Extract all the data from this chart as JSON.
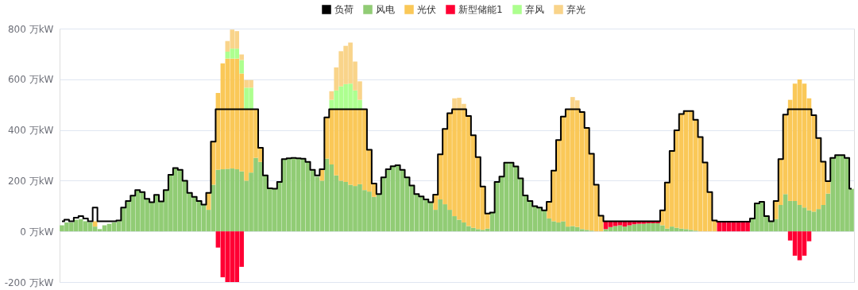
{
  "chart_data": {
    "type": "bar",
    "stacked": true,
    "legend": "top",
    "grid": "y",
    "tick_labels": "y",
    "categories": [
      null,
      null,
      null,
      null,
      null,
      null,
      null,
      null,
      null,
      null,
      null,
      null,
      null,
      null,
      null,
      null,
      null,
      null,
      null,
      null,
      null,
      null,
      null,
      null,
      null,
      null,
      null,
      null,
      null,
      null,
      null,
      null,
      null,
      null,
      null,
      null,
      null,
      null,
      null,
      null,
      null,
      null,
      null,
      null,
      null,
      null,
      null,
      null,
      null,
      null,
      null,
      null,
      null,
      null,
      null,
      null,
      null,
      null,
      null,
      null,
      null,
      null,
      null,
      null,
      null,
      null,
      null,
      null,
      null,
      null,
      null,
      null,
      null,
      null,
      null,
      null,
      null,
      null,
      null,
      null,
      null,
      null,
      null,
      null,
      null,
      null,
      null,
      null,
      null,
      null,
      null,
      null,
      null,
      null,
      null,
      null,
      null,
      null,
      null,
      null,
      null,
      null,
      null,
      null,
      null,
      null,
      null,
      null,
      null,
      null,
      null,
      null,
      null,
      null,
      null,
      null,
      null,
      null,
      null,
      null,
      null,
      null,
      null,
      null,
      null,
      null,
      null,
      null,
      null,
      null,
      null,
      null,
      null,
      null,
      null,
      null,
      null,
      null,
      null,
      null,
      null,
      null,
      null,
      null,
      null,
      null,
      null,
      null,
      null,
      null,
      null,
      null,
      null,
      null,
      null,
      null,
      null,
      null,
      null,
      null,
      null,
      null,
      null,
      null,
      null,
      null,
      null,
      null
    ],
    "ylim": [
      -200,
      800
    ],
    "yticks": [
      {
        "value": -200,
        "label": "-200 万kW"
      },
      {
        "value": 0,
        "label": "0 万kW"
      },
      {
        "value": 200,
        "label": "200 万kW"
      },
      {
        "value": 400,
        "label": "400 万kW"
      },
      {
        "value": 600,
        "label": "600 万kW"
      },
      {
        "value": 800,
        "label": "800 万kW"
      }
    ],
    "series": [
      {
        "name": "负荷",
        "type": "step",
        "color": "#000000",
        "values": [
          40,
          46,
          40,
          54,
          60,
          51,
          40,
          94,
          40,
          40,
          40,
          40,
          43,
          94,
          120,
          141,
          163,
          155,
          128,
          115,
          144,
          118,
          163,
          223,
          250,
          243,
          200,
          152,
          136,
          120,
          106,
          152,
          354,
          482,
          482,
          482,
          482,
          482,
          482,
          482,
          482,
          482,
          330,
          221,
          170,
          168,
          195,
          285,
          288,
          290,
          288,
          287,
          274,
          243,
          221,
          245,
          450,
          482,
          482,
          482,
          482,
          482,
          482,
          482,
          482,
          322,
          189,
          147,
          213,
          245,
          257,
          261,
          243,
          213,
          181,
          147,
          138,
          126,
          115,
          145,
          304,
          404,
          466,
          482,
          482,
          482,
          455,
          379,
          293,
          177,
          70,
          74,
          195,
          216,
          271,
          271,
          256,
          209,
          142,
          120,
          99,
          94,
          83,
          117,
          240,
          360,
          453,
          482,
          482,
          482,
          471,
          408,
          306,
          184,
          62,
          40,
          40,
          40,
          40,
          40,
          40,
          40,
          40,
          40,
          40,
          40,
          40,
          83,
          193,
          317,
          399,
          463,
          475,
          475,
          440,
          372,
          272,
          155,
          43,
          38,
          38,
          38,
          38,
          38,
          38,
          38,
          51,
          110,
          117,
          60,
          40,
          120,
          285,
          461,
          482,
          482,
          482,
          482,
          482,
          458,
          368,
          275,
          198,
          290,
          301,
          301,
          290,
          168
        ]
      },
      {
        "name": "风电",
        "color": "#91cc75",
        "values": [
          24,
          35,
          35,
          46,
          48,
          40,
          35,
          19,
          9,
          24,
          30,
          35,
          40,
          94,
          120,
          141,
          163,
          155,
          128,
          115,
          144,
          118,
          163,
          223,
          250,
          243,
          200,
          152,
          136,
          120,
          106,
          85,
          184,
          243,
          245,
          247,
          248,
          245,
          237,
          200,
          232,
          290,
          274,
          221,
          170,
          168,
          195,
          285,
          288,
          290,
          288,
          287,
          274,
          243,
          216,
          200,
          287,
          264,
          221,
          200,
          195,
          184,
          179,
          186,
          163,
          157,
          136,
          147,
          213,
          245,
          257,
          261,
          243,
          213,
          181,
          147,
          138,
          126,
          115,
          85,
          126,
          107,
          85,
          60,
          46,
          35,
          21,
          14,
          9,
          6,
          11,
          74,
          195,
          216,
          271,
          271,
          256,
          209,
          142,
          120,
          99,
          94,
          83,
          51,
          40,
          35,
          40,
          19,
          21,
          17,
          9,
          6,
          3,
          null,
          null,
          9,
          17,
          21,
          24,
          19,
          24,
          28,
          30,
          30,
          32,
          32,
          32,
          24,
          11,
          19,
          14,
          11,
          9,
          6,
          3,
          null,
          0,
          0,
          0,
          0,
          0,
          0,
          0,
          0,
          0,
          0,
          51,
          110,
          117,
          60,
          40,
          48,
          104,
          147,
          120,
          120,
          104,
          94,
          83,
          78,
          88,
          104,
          149,
          290,
          301,
          301,
          290,
          168
        ]
      },
      {
        "name": "光伏",
        "color": "#fac858",
        "values": [
          null,
          null,
          null,
          null,
          null,
          null,
          null,
          21,
          null,
          null,
          null,
          null,
          null,
          null,
          null,
          null,
          null,
          null,
          null,
          null,
          null,
          null,
          null,
          null,
          null,
          null,
          null,
          null,
          null,
          null,
          null,
          67,
          170,
          303,
          418,
          435,
          434,
          437,
          386,
          282,
          250,
          192,
          56,
          null,
          null,
          null,
          null,
          null,
          null,
          null,
          null,
          null,
          null,
          null,
          null,
          45,
          163,
          218,
          261,
          282,
          287,
          298,
          303,
          296,
          319,
          165,
          53,
          null,
          null,
          null,
          null,
          null,
          null,
          null,
          null,
          null,
          null,
          null,
          null,
          60,
          178,
          297,
          381,
          422,
          436,
          447,
          434,
          365,
          284,
          171,
          59,
          null,
          null,
          null,
          null,
          null,
          null,
          null,
          null,
          null,
          null,
          null,
          null,
          66,
          200,
          325,
          413,
          463,
          461,
          465,
          462,
          402,
          303,
          182,
          60,
          null,
          null,
          null,
          null,
          null,
          null,
          null,
          null,
          null,
          null,
          null,
          null,
          59,
          182,
          298,
          385,
          452,
          466,
          469,
          437,
          370,
          272,
          155,
          43,
          null,
          null,
          null,
          null,
          null,
          null,
          null,
          null,
          null,
          null,
          null,
          null,
          72,
          181,
          314,
          399,
          463,
          495,
          489,
          442,
          380,
          280,
          171,
          49,
          null,
          null,
          null,
          null,
          null
        ]
      },
      {
        "name": "新型储能1",
        "color": "#ff0033",
        "values": [
          null,
          null,
          null,
          null,
          null,
          null,
          null,
          null,
          null,
          null,
          null,
          null,
          null,
          null,
          null,
          null,
          null,
          null,
          null,
          null,
          null,
          null,
          null,
          null,
          null,
          null,
          null,
          null,
          null,
          null,
          null,
          null,
          null,
          -64,
          -181,
          -200,
          -200,
          -200,
          -140,
          null,
          null,
          null,
          null,
          null,
          null,
          null,
          null,
          null,
          null,
          null,
          null,
          null,
          null,
          null,
          null,
          null,
          null,
          null,
          null,
          null,
          null,
          null,
          null,
          null,
          null,
          null,
          null,
          null,
          null,
          null,
          null,
          null,
          null,
          null,
          null,
          null,
          null,
          null,
          null,
          null,
          null,
          null,
          null,
          null,
          null,
          null,
          null,
          null,
          null,
          null,
          null,
          null,
          null,
          null,
          null,
          null,
          null,
          null,
          null,
          null,
          null,
          null,
          null,
          null,
          null,
          null,
          null,
          null,
          null,
          null,
          null,
          null,
          null,
          null,
          null,
          31,
          23,
          19,
          16,
          21,
          16,
          12,
          10,
          10,
          8,
          8,
          8,
          null,
          null,
          null,
          null,
          null,
          null,
          null,
          null,
          null,
          null,
          null,
          null,
          38,
          38,
          38,
          38,
          38,
          38,
          38,
          null,
          null,
          null,
          null,
          null,
          null,
          null,
          null,
          -36,
          -96,
          -114,
          -96,
          -39,
          null,
          null,
          null,
          null,
          null,
          null,
          null,
          null,
          null
        ]
      },
      {
        "name": "弃风",
        "color": "#adff8f",
        "values": [
          null,
          null,
          null,
          null,
          null,
          null,
          null,
          null,
          null,
          null,
          null,
          null,
          null,
          null,
          null,
          null,
          null,
          null,
          null,
          null,
          null,
          null,
          null,
          null,
          null,
          null,
          null,
          null,
          null,
          null,
          null,
          null,
          null,
          null,
          null,
          27,
          39,
          39,
          53,
          85,
          85,
          null,
          null,
          null,
          null,
          null,
          null,
          null,
          null,
          null,
          null,
          null,
          null,
          null,
          null,
          null,
          null,
          37,
          74,
          90,
          99,
          101,
          74,
          37,
          null,
          null,
          null,
          null,
          null,
          null,
          null,
          null,
          null,
          null,
          null,
          null,
          null,
          null,
          null,
          null,
          null,
          null,
          null,
          null,
          null,
          null,
          null,
          null,
          null,
          null,
          null,
          null,
          null,
          null,
          null,
          null,
          null,
          null,
          null,
          null,
          null,
          null,
          null,
          null,
          null,
          null,
          null,
          null,
          null,
          null,
          null,
          null,
          null,
          null,
          null,
          null,
          null,
          null,
          null,
          null,
          null,
          null,
          null,
          null,
          null,
          null,
          null,
          null,
          null,
          null,
          null,
          null,
          null,
          null,
          null,
          null,
          null,
          null,
          null,
          null,
          null,
          null,
          null,
          null,
          null,
          null,
          null,
          null,
          null,
          null,
          null,
          null,
          null,
          null,
          null,
          null,
          null,
          null,
          null,
          null,
          null,
          null,
          null,
          null,
          null,
          null,
          null,
          null
        ]
      },
      {
        "name": "弃光",
        "color": "#f9d48a",
        "values": [
          null,
          null,
          null,
          null,
          null,
          null,
          null,
          null,
          null,
          null,
          null,
          null,
          null,
          null,
          null,
          null,
          null,
          null,
          null,
          null,
          null,
          null,
          null,
          null,
          null,
          null,
          null,
          null,
          null,
          null,
          null,
          null,
          null,
          null,
          null,
          42,
          75,
          69,
          22,
          30,
          30,
          null,
          null,
          null,
          null,
          null,
          null,
          null,
          null,
          null,
          null,
          null,
          null,
          null,
          null,
          null,
          null,
          34,
          91,
          139,
          151,
          162,
          114,
          73,
          null,
          null,
          null,
          null,
          null,
          null,
          null,
          null,
          null,
          null,
          null,
          null,
          null,
          null,
          null,
          null,
          null,
          null,
          null,
          43,
          45,
          21,
          null,
          null,
          null,
          null,
          null,
          null,
          null,
          null,
          null,
          null,
          null,
          null,
          null,
          null,
          null,
          null,
          null,
          null,
          null,
          null,
          null,
          null,
          48,
          35,
          null,
          null,
          null,
          null,
          null,
          null,
          null,
          null,
          null,
          null,
          null,
          null,
          null,
          null,
          null,
          null,
          null,
          null,
          null,
          null,
          null,
          null,
          null,
          null,
          null,
          null,
          null,
          null,
          null,
          null,
          null,
          null,
          null,
          null,
          null,
          null,
          null,
          null,
          null,
          null,
          null,
          null,
          null,
          null,
          null,
          null,
          null,
          null,
          null,
          null,
          null,
          null,
          null,
          null,
          null,
          null,
          null,
          null
        ]
      }
    ]
  }
}
